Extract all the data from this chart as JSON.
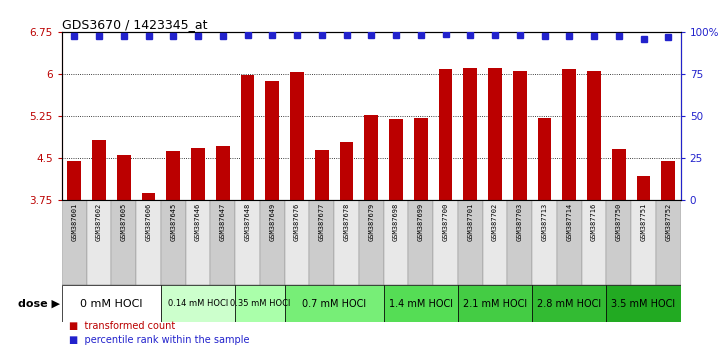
{
  "title": "GDS3670 / 1423345_at",
  "samples": [
    "GSM387601",
    "GSM387602",
    "GSM387605",
    "GSM387606",
    "GSM387645",
    "GSM387646",
    "GSM387647",
    "GSM387648",
    "GSM387649",
    "GSM387676",
    "GSM387677",
    "GSM387678",
    "GSM387679",
    "GSM387698",
    "GSM387699",
    "GSM387700",
    "GSM387701",
    "GSM387702",
    "GSM387703",
    "GSM387713",
    "GSM387714",
    "GSM387716",
    "GSM387750",
    "GSM387751",
    "GSM387752"
  ],
  "bar_values": [
    4.45,
    4.82,
    4.56,
    3.88,
    4.63,
    4.68,
    4.72,
    5.98,
    5.88,
    6.03,
    4.65,
    4.78,
    5.27,
    5.2,
    5.22,
    6.08,
    6.1,
    6.1,
    6.05,
    5.22,
    6.08,
    6.05,
    4.66,
    4.17,
    4.45
  ],
  "percentile_y_left": [
    6.68,
    6.68,
    6.68,
    6.68,
    6.68,
    6.68,
    6.68,
    6.7,
    6.7,
    6.7,
    6.7,
    6.7,
    6.7,
    6.7,
    6.7,
    6.72,
    6.7,
    6.7,
    6.7,
    6.68,
    6.68,
    6.68,
    6.68,
    6.62,
    6.65
  ],
  "bar_color": "#bb0000",
  "percentile_color": "#2222cc",
  "ymin": 3.75,
  "ymax": 6.75,
  "yticks_left": [
    3.75,
    4.5,
    5.25,
    6.0,
    6.75
  ],
  "ytick_labels_left": [
    "3.75",
    "4.5",
    "5.25",
    "6",
    "6.75"
  ],
  "yticks_right": [
    0,
    25,
    50,
    75,
    100
  ],
  "ytick_labels_right": [
    "0",
    "25",
    "50",
    "75",
    "100%"
  ],
  "grid_values": [
    4.5,
    5.25,
    6.0
  ],
  "dose_groups": [
    {
      "label": "0 mM HOCl",
      "start": 0,
      "end": 4,
      "color": "#ffffff",
      "fontsize": 8
    },
    {
      "label": "0.14 mM HOCl",
      "start": 4,
      "end": 7,
      "color": "#ccffcc",
      "fontsize": 6
    },
    {
      "label": "0.35 mM HOCl",
      "start": 7,
      "end": 9,
      "color": "#aaffaa",
      "fontsize": 6
    },
    {
      "label": "0.7 mM HOCl",
      "start": 9,
      "end": 13,
      "color": "#77ee77",
      "fontsize": 7
    },
    {
      "label": "1.4 mM HOCl",
      "start": 13,
      "end": 16,
      "color": "#55dd55",
      "fontsize": 7
    },
    {
      "label": "2.1 mM HOCl",
      "start": 16,
      "end": 19,
      "color": "#44cc44",
      "fontsize": 7
    },
    {
      "label": "2.8 mM HOCl",
      "start": 19,
      "end": 22,
      "color": "#33bb33",
      "fontsize": 7
    },
    {
      "label": "3.5 mM HOCl",
      "start": 22,
      "end": 25,
      "color": "#22aa22",
      "fontsize": 7
    }
  ],
  "dose_label": "dose",
  "legend_bar_label": "transformed count",
  "legend_pct_label": "percentile rank within the sample",
  "bg_col_even": "#cccccc",
  "bg_col_odd": "#e8e8e8"
}
